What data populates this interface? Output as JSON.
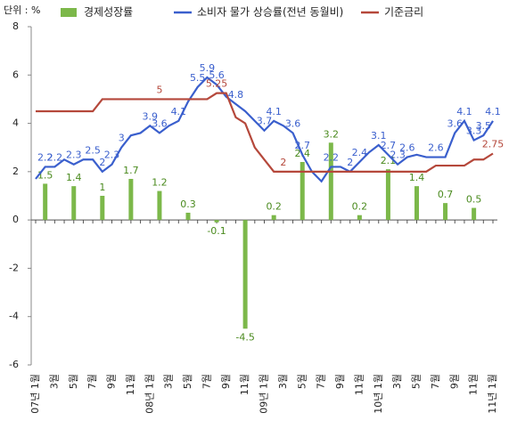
{
  "chart_data": {
    "type": "combo",
    "unit_label": "단위 : %",
    "categories": [
      "07년 1월",
      null,
      "3월",
      null,
      "5월",
      null,
      "7월",
      null,
      "9월",
      null,
      "11월",
      null,
      "08년 1월",
      null,
      "3월",
      null,
      "5월",
      null,
      "7월",
      null,
      "9월",
      null,
      "11월",
      null,
      "09년 1월",
      null,
      "3월",
      null,
      "5월",
      null,
      "7월",
      null,
      "9월",
      null,
      "11월",
      null,
      "10년 1월",
      null,
      "3월",
      null,
      "5월",
      null,
      "7월",
      null,
      "9월",
      null,
      "11월",
      null,
      "11년 1월"
    ],
    "ylim": [
      -6,
      8
    ],
    "yticks": [
      -6,
      -4,
      -2,
      0,
      2,
      4,
      6,
      8
    ],
    "series": [
      {
        "name": "경제성장률",
        "type": "bar",
        "color": "#7cb84a",
        "values": [
          null,
          1.5,
          null,
          null,
          1.4,
          null,
          null,
          1,
          null,
          null,
          1.7,
          null,
          null,
          1.2,
          null,
          null,
          0.3,
          null,
          null,
          -0.1,
          null,
          null,
          -4.5,
          null,
          null,
          0.2,
          null,
          null,
          2.4,
          null,
          null,
          3.2,
          null,
          null,
          0.2,
          null,
          null,
          2.1,
          null,
          null,
          1.4,
          null,
          null,
          0.7,
          null,
          null,
          0.5,
          null,
          null
        ]
      },
      {
        "name": "소비자 물가 상승률(전년 동월비)",
        "type": "line",
        "color": "#3a5fcd",
        "values": [
          1.7,
          2.2,
          2.2,
          2.5,
          2.3,
          2.5,
          2.5,
          2.0,
          2.3,
          3.0,
          3.5,
          3.6,
          3.9,
          3.6,
          3.9,
          4.1,
          4.9,
          5.5,
          5.9,
          5.6,
          5.1,
          4.8,
          4.5,
          4.1,
          3.7,
          4.1,
          3.9,
          3.6,
          2.7,
          2.0,
          1.6,
          2.2,
          2.2,
          2.0,
          2.4,
          2.8,
          3.1,
          2.7,
          2.3,
          2.6,
          2.7,
          2.6,
          2.6,
          2.6,
          3.6,
          4.1,
          3.3,
          3.5,
          4.1
        ],
        "value_labels": [
          null,
          "2.2",
          "2.2",
          null,
          "2.3",
          null,
          "2.5",
          "2",
          "2.3",
          "3",
          null,
          null,
          "3.9",
          "3.6",
          null,
          "4.1",
          null,
          "5.5",
          "5.9",
          "5.6",
          null,
          "4.8",
          null,
          null,
          "3.7",
          "4.1",
          null,
          "3.6",
          "2.7",
          null,
          null,
          "2.2",
          null,
          "2",
          "2.4",
          null,
          "3.1",
          "2.7",
          "2.3",
          "2.6",
          null,
          null,
          "2.6",
          null,
          "3.6",
          "4.1",
          "3.3",
          "3.5",
          "4.1"
        ]
      },
      {
        "name": "기준금리",
        "type": "line",
        "color": "#b5483b",
        "values": [
          4.5,
          4.5,
          4.5,
          4.5,
          4.5,
          4.5,
          4.5,
          5.0,
          5.0,
          5.0,
          5.0,
          5.0,
          5.0,
          5.0,
          5.0,
          5.0,
          5.0,
          5.0,
          5.0,
          5.25,
          5.25,
          4.25,
          4.0,
          3.0,
          2.5,
          2.0,
          2.0,
          2.0,
          2.0,
          2.0,
          2.0,
          2.0,
          2.0,
          2.0,
          2.0,
          2.0,
          2.0,
          2.0,
          2.0,
          2.0,
          2.0,
          2.0,
          2.25,
          2.25,
          2.25,
          2.25,
          2.5,
          2.5,
          2.75
        ],
        "value_labels": [
          null,
          null,
          null,
          null,
          null,
          null,
          null,
          null,
          null,
          null,
          null,
          null,
          null,
          "5",
          null,
          null,
          null,
          null,
          null,
          "5.25",
          null,
          null,
          null,
          null,
          null,
          null,
          "2",
          null,
          null,
          null,
          null,
          null,
          null,
          null,
          null,
          null,
          null,
          null,
          null,
          null,
          null,
          null,
          null,
          null,
          null,
          null,
          null,
          null,
          "2.75"
        ]
      }
    ]
  }
}
